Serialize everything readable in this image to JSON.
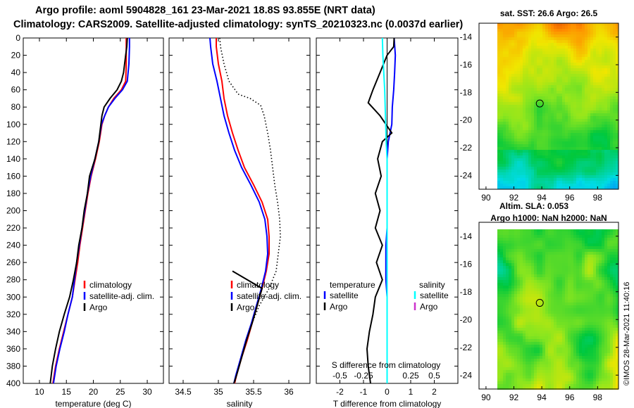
{
  "header": {
    "line1": "Argo profile: aoml 5904828_161 23-Mar-2021 18.8S 93.855E (NRT data)",
    "line2": "Climatology: CARS2009. Satellite-adjusted climatology: synTS_20210323.nc (0.0037d earlier)"
  },
  "credit": "©IMOS 28-Mar-2021 11:40:16",
  "colors": {
    "climatology": "#ff0000",
    "satellite": "#0000ff",
    "argo": "#000000",
    "sal_satellite": "#00ffff",
    "sal_argo": "#cc33cc"
  },
  "chart_data": [
    {
      "type": "line",
      "title": "",
      "xlabel": "temperature (deg C)",
      "ylabel": "",
      "xlim": [
        7,
        33
      ],
      "ylim": [
        400,
        0
      ],
      "xticks": [
        10,
        15,
        20,
        25,
        30
      ],
      "yticks": [
        0,
        20,
        40,
        60,
        80,
        100,
        120,
        140,
        160,
        180,
        200,
        220,
        240,
        260,
        280,
        300,
        320,
        340,
        360,
        380,
        400
      ],
      "legend": {
        "position": "center-right",
        "labels": [
          "climatology",
          "satellite-adj. clim.",
          "Argo"
        ]
      },
      "series": [
        {
          "name": "climatology",
          "color": "#ff0000",
          "style": "solid",
          "points": [
            [
              26.1,
              0
            ],
            [
              26.1,
              10
            ],
            [
              26.1,
              30
            ],
            [
              26.0,
              50
            ],
            [
              25.2,
              60
            ],
            [
              23.8,
              70
            ],
            [
              22.8,
              80
            ],
            [
              22.1,
              90
            ],
            [
              21.6,
              100
            ],
            [
              21.1,
              120
            ],
            [
              20.4,
              140
            ],
            [
              19.6,
              160
            ],
            [
              19.0,
              180
            ],
            [
              18.5,
              200
            ],
            [
              18.0,
              220
            ],
            [
              17.5,
              240
            ],
            [
              17.1,
              260
            ],
            [
              16.6,
              280
            ],
            [
              16.1,
              300
            ],
            [
              15.3,
              320
            ],
            [
              14.5,
              340
            ],
            [
              13.7,
              360
            ],
            [
              13.0,
              380
            ],
            [
              12.5,
              400
            ]
          ]
        },
        {
          "name": "satellite-adj. clim.",
          "color": "#0000ff",
          "style": "solid",
          "points": [
            [
              26.7,
              0
            ],
            [
              26.7,
              10
            ],
            [
              26.6,
              30
            ],
            [
              26.3,
              50
            ],
            [
              25.4,
              60
            ],
            [
              24.0,
              70
            ],
            [
              22.8,
              80
            ],
            [
              22.1,
              90
            ],
            [
              21.5,
              100
            ],
            [
              21.0,
              120
            ],
            [
              20.3,
              140
            ],
            [
              19.5,
              160
            ],
            [
              18.9,
              180
            ],
            [
              18.4,
              200
            ],
            [
              17.9,
              220
            ],
            [
              17.4,
              240
            ],
            [
              16.9,
              260
            ],
            [
              16.5,
              280
            ],
            [
              16.1,
              300
            ],
            [
              15.3,
              320
            ],
            [
              14.6,
              340
            ],
            [
              13.8,
              360
            ],
            [
              13.1,
              380
            ],
            [
              12.6,
              400
            ]
          ]
        },
        {
          "name": "Argo",
          "color": "#000000",
          "style": "solid",
          "points": [
            [
              26.3,
              0
            ],
            [
              26.2,
              10
            ],
            [
              26.0,
              20
            ],
            [
              25.8,
              30
            ],
            [
              25.6,
              40
            ],
            [
              25.2,
              50
            ],
            [
              24.4,
              60
            ],
            [
              23.1,
              70
            ],
            [
              22.0,
              80
            ],
            [
              21.6,
              90
            ],
            [
              21.4,
              100
            ],
            [
              21.0,
              120
            ],
            [
              20.3,
              140
            ],
            [
              19.3,
              160
            ],
            [
              18.9,
              180
            ],
            [
              18.3,
              200
            ],
            [
              17.9,
              220
            ],
            [
              17.3,
              240
            ],
            [
              16.9,
              260
            ],
            [
              16.3,
              280
            ],
            [
              15.6,
              300
            ],
            [
              14.6,
              320
            ],
            [
              13.7,
              340
            ],
            [
              13.0,
              360
            ],
            [
              12.4,
              380
            ],
            [
              12.0,
              400
            ]
          ]
        }
      ]
    },
    {
      "type": "line",
      "title": "",
      "xlabel": "salinity",
      "ylabel": "",
      "xlim": [
        34.3,
        36.3
      ],
      "ylim": [
        400,
        0
      ],
      "xticks": [
        34.5,
        35,
        35.5,
        36
      ],
      "legend": {
        "position": "center-right",
        "labels": [
          "climatology",
          "satellite-adj. clim.",
          "Argo"
        ]
      },
      "series": [
        {
          "name": "climatology",
          "color": "#ff0000",
          "style": "solid",
          "points": [
            [
              34.97,
              0
            ],
            [
              34.97,
              10
            ],
            [
              35.0,
              30
            ],
            [
              35.05,
              50
            ],
            [
              35.08,
              70
            ],
            [
              35.13,
              90
            ],
            [
              35.2,
              110
            ],
            [
              35.28,
              130
            ],
            [
              35.37,
              150
            ],
            [
              35.5,
              170
            ],
            [
              35.62,
              190
            ],
            [
              35.7,
              210
            ],
            [
              35.72,
              230
            ],
            [
              35.72,
              250
            ],
            [
              35.68,
              270
            ],
            [
              35.62,
              290
            ],
            [
              35.55,
              310
            ],
            [
              35.48,
              330
            ],
            [
              35.41,
              350
            ],
            [
              35.33,
              370
            ],
            [
              35.26,
              390
            ],
            [
              35.23,
              400
            ]
          ]
        },
        {
          "name": "satellite-adj. clim.",
          "color": "#0000ff",
          "style": "solid",
          "points": [
            [
              34.88,
              0
            ],
            [
              34.89,
              10
            ],
            [
              34.92,
              30
            ],
            [
              34.98,
              50
            ],
            [
              35.03,
              70
            ],
            [
              35.08,
              90
            ],
            [
              35.15,
              110
            ],
            [
              35.23,
              130
            ],
            [
              35.33,
              150
            ],
            [
              35.46,
              170
            ],
            [
              35.58,
              190
            ],
            [
              35.66,
              210
            ],
            [
              35.69,
              230
            ],
            [
              35.7,
              250
            ],
            [
              35.67,
              270
            ],
            [
              35.61,
              290
            ],
            [
              35.54,
              310
            ],
            [
              35.47,
              330
            ],
            [
              35.39,
              350
            ],
            [
              35.32,
              370
            ],
            [
              35.25,
              390
            ],
            [
              35.22,
              400
            ]
          ]
        },
        {
          "name": "Argo",
          "color": "#000000",
          "style": "solid",
          "points": [
            [
              35.2,
              270
            ],
            [
              35.62,
              290
            ],
            [
              35.55,
              310
            ],
            [
              35.48,
              330
            ],
            [
              35.4,
              350
            ],
            [
              35.33,
              370
            ],
            [
              35.26,
              390
            ],
            [
              35.22,
              400
            ]
          ]
        },
        {
          "name": "CARS salinity (dotted)",
          "color": "#000000",
          "style": "dotted",
          "points": [
            [
              35.02,
              0
            ],
            [
              35.03,
              10
            ],
            [
              35.08,
              30
            ],
            [
              35.15,
              50
            ],
            [
              35.28,
              65
            ],
            [
              35.45,
              70
            ],
            [
              35.6,
              78
            ],
            [
              35.65,
              90
            ],
            [
              35.7,
              110
            ],
            [
              35.74,
              130
            ],
            [
              35.77,
              150
            ],
            [
              35.8,
              170
            ],
            [
              35.84,
              190
            ],
            [
              35.87,
              210
            ],
            [
              35.88,
              230
            ],
            [
              35.85,
              250
            ],
            [
              35.82,
              270
            ],
            [
              35.72,
              290
            ],
            [
              35.58,
              310
            ],
            [
              35.48,
              330
            ],
            [
              35.4,
              350
            ],
            [
              35.33,
              370
            ],
            [
              35.26,
              390
            ],
            [
              35.23,
              400
            ]
          ]
        }
      ]
    },
    {
      "type": "line",
      "title": "",
      "xlabel": "T difference from climatology",
      "ylabel": "",
      "xlim": [
        -3,
        3
      ],
      "ylim": [
        400,
        0
      ],
      "xticks": [
        -2,
        -1,
        0,
        1,
        2
      ],
      "top_axis": {
        "label": "S difference from climatology",
        "ticks": [
          -0.5,
          -0.25,
          0,
          0.25,
          0.5
        ],
        "xlim": [
          -0.75,
          0.75
        ]
      },
      "legend": {
        "position": "center",
        "labels": [
          "temperature",
          "satellite",
          "Argo",
          "salinity",
          "satellite",
          "Argo"
        ]
      },
      "series": [
        {
          "name": "temperature satellite",
          "color": "#0000ff",
          "axis": "T",
          "points": [
            [
              0.3,
              0
            ],
            [
              0.35,
              20
            ],
            [
              0.32,
              40
            ],
            [
              0.28,
              60
            ],
            [
              0.22,
              80
            ],
            [
              0.2,
              100
            ],
            [
              0.05,
              120
            ],
            [
              0.0,
              140
            ],
            [
              0.0,
              160
            ],
            [
              0.0,
              180
            ],
            [
              0.0,
              200
            ],
            [
              0.0,
              220
            ],
            [
              -0.05,
              240
            ],
            [
              -0.05,
              260
            ],
            [
              -0.05,
              280
            ],
            [
              0.0,
              300
            ],
            [
              0.0,
              320
            ],
            [
              0.0,
              340
            ],
            [
              0.0,
              360
            ],
            [
              0.0,
              380
            ],
            [
              0.0,
              400
            ]
          ]
        },
        {
          "name": "temperature Argo",
          "color": "#000000",
          "axis": "T",
          "points": [
            [
              0.3,
              0
            ],
            [
              0.28,
              10
            ],
            [
              0.0,
              20
            ],
            [
              -0.3,
              40
            ],
            [
              -0.6,
              60
            ],
            [
              -0.8,
              75
            ],
            [
              -0.3,
              90
            ],
            [
              0.2,
              110
            ],
            [
              -0.2,
              120
            ],
            [
              -0.4,
              140
            ],
            [
              -0.25,
              160
            ],
            [
              -0.5,
              180
            ],
            [
              -0.3,
              200
            ],
            [
              -0.5,
              220
            ],
            [
              -0.2,
              240
            ],
            [
              -0.45,
              260
            ],
            [
              -0.2,
              280
            ],
            [
              -0.5,
              300
            ],
            [
              -0.6,
              320
            ],
            [
              -0.75,
              340
            ],
            [
              -0.85,
              360
            ],
            [
              -0.8,
              380
            ],
            [
              -0.7,
              400
            ]
          ]
        },
        {
          "name": "salinity satellite",
          "color": "#00ffff",
          "axis": "S",
          "points": [
            [
              -0.05,
              0
            ],
            [
              -0.045,
              20
            ],
            [
              -0.035,
              40
            ],
            [
              -0.025,
              60
            ],
            [
              -0.02,
              80
            ],
            [
              -0.015,
              100
            ],
            [
              -0.01,
              120
            ],
            [
              0.0,
              140
            ],
            [
              0.0,
              160
            ],
            [
              0.0,
              200
            ],
            [
              0.0,
              300
            ],
            [
              0.0,
              400
            ]
          ]
        }
      ]
    },
    {
      "type": "heatmap",
      "title": "sat. SST: 26.6 Argo: 26.5",
      "xlim": [
        89.5,
        99.5
      ],
      "ylim": [
        -25,
        -13
      ],
      "xticks": [
        90,
        92,
        94,
        96,
        98
      ],
      "yticks": [
        -24,
        -22,
        -20,
        -18,
        -16,
        -14
      ],
      "marker": {
        "x": 93.855,
        "y": -18.8
      },
      "field": "SST"
    },
    {
      "type": "heatmap",
      "title": "Argo h1000: NaN h2000: NaN",
      "subtitle": "Altim. SLA: 0.053",
      "xlim": [
        89.5,
        99.5
      ],
      "ylim": [
        -25,
        -13
      ],
      "xticks": [
        90,
        92,
        94,
        96,
        98
      ],
      "yticks": [
        -24,
        -22,
        -20,
        -18,
        -16,
        -14
      ],
      "marker": {
        "x": 93.855,
        "y": -18.8
      },
      "field": "SLA"
    }
  ]
}
